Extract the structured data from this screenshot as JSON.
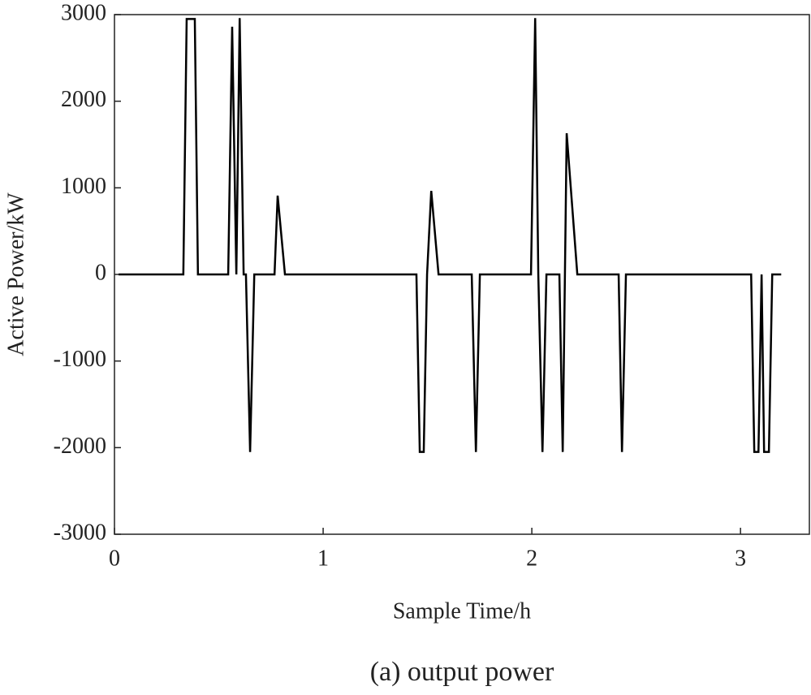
{
  "chart_data": {
    "type": "line",
    "caption": "(a) output power",
    "xlabel": "Sample Time/h",
    "ylabel": "Active Power/kW",
    "xlim": [
      0,
      3.33
    ],
    "ylim": [
      -3000,
      3000
    ],
    "xticks": [
      0,
      1,
      2,
      3
    ],
    "yticks": [
      -3000,
      -2000,
      -1000,
      0,
      1000,
      2000,
      3000
    ],
    "color": "#000000",
    "x": [
      0.02,
      0.33,
      0.346,
      0.385,
      0.4,
      0.545,
      0.564,
      0.584,
      0.6,
      0.619,
      0.63,
      0.65,
      0.67,
      0.767,
      0.782,
      0.817,
      1.447,
      1.463,
      1.482,
      1.498,
      1.518,
      1.553,
      1.712,
      1.732,
      1.751,
      1.996,
      2.016,
      2.031,
      2.051,
      2.07,
      2.132,
      2.148,
      2.167,
      2.218,
      2.416,
      2.432,
      2.451,
      3.051,
      3.066,
      3.086,
      3.101,
      3.113,
      3.136,
      3.152,
      3.195
    ],
    "values": [
      0,
      0,
      2950,
      2950,
      0,
      0,
      2860,
      0,
      2960,
      0,
      0,
      -2050,
      0,
      0,
      910,
      0,
      0,
      -2050,
      -2050,
      0,
      965,
      0,
      0,
      -2050,
      0,
      0,
      2960,
      0,
      -2050,
      0,
      0,
      -2050,
      1630,
      0,
      0,
      -2050,
      0,
      0,
      -2050,
      -2050,
      0,
      -2050,
      -2050,
      0,
      0
    ]
  }
}
